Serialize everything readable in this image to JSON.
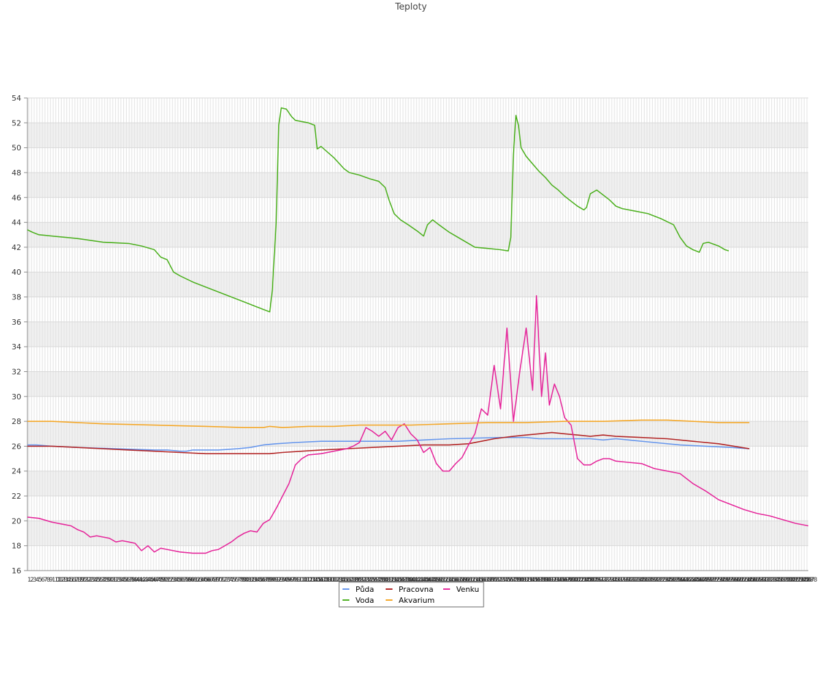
{
  "chart_data": {
    "type": "line",
    "title": "Teploty",
    "xlabel": "",
    "ylabel": "",
    "ylim": [
      16,
      54
    ],
    "yticks": [
      16,
      18,
      20,
      22,
      24,
      26,
      28,
      30,
      32,
      34,
      36,
      38,
      40,
      42,
      44,
      46,
      48,
      50,
      52,
      54
    ],
    "x_count": 288,
    "x_first_label": "1",
    "x_last_label": "288",
    "grid": true,
    "legend_position": "bottom",
    "series": [
      {
        "name": "Půda",
        "color": "#6495ED",
        "points": [
          [
            1,
            26.1
          ],
          [
            8,
            26.1
          ],
          [
            20,
            26.0
          ],
          [
            40,
            25.9
          ],
          [
            70,
            25.8
          ],
          [
            100,
            25.7
          ],
          [
            110,
            25.7
          ],
          [
            120,
            25.6
          ],
          [
            125,
            25.6
          ],
          [
            130,
            25.7
          ],
          [
            150,
            25.7
          ],
          [
            165,
            25.8
          ],
          [
            175,
            25.9
          ],
          [
            185,
            26.1
          ],
          [
            195,
            26.2
          ],
          [
            210,
            26.3
          ],
          [
            230,
            26.4
          ],
          [
            260,
            26.4
          ],
          [
            290,
            26.4
          ],
          [
            310,
            26.5
          ],
          [
            330,
            26.6
          ],
          [
            370,
            26.7
          ],
          [
            390,
            26.7
          ],
          [
            400,
            26.6
          ],
          [
            420,
            26.6
          ],
          [
            440,
            26.6
          ],
          [
            450,
            26.5
          ],
          [
            460,
            26.6
          ],
          [
            470,
            26.5
          ],
          [
            490,
            26.3
          ],
          [
            510,
            26.1
          ],
          [
            530,
            26.0
          ],
          [
            550,
            25.9
          ],
          [
            564,
            25.8
          ]
        ]
      },
      {
        "name": "Pracovna",
        "color": "#B22222",
        "points": [
          [
            1,
            26.0
          ],
          [
            20,
            26.0
          ],
          [
            40,
            25.9
          ],
          [
            60,
            25.8
          ],
          [
            80,
            25.7
          ],
          [
            100,
            25.6
          ],
          [
            120,
            25.5
          ],
          [
            140,
            25.4
          ],
          [
            160,
            25.4
          ],
          [
            175,
            25.4
          ],
          [
            190,
            25.4
          ],
          [
            200,
            25.5
          ],
          [
            215,
            25.6
          ],
          [
            230,
            25.7
          ],
          [
            250,
            25.8
          ],
          [
            270,
            25.9
          ],
          [
            290,
            26.0
          ],
          [
            310,
            26.1
          ],
          [
            330,
            26.1
          ],
          [
            345,
            26.2
          ],
          [
            355,
            26.4
          ],
          [
            365,
            26.6
          ],
          [
            380,
            26.8
          ],
          [
            390,
            26.9
          ],
          [
            400,
            27.0
          ],
          [
            410,
            27.1
          ],
          [
            420,
            27.0
          ],
          [
            430,
            26.9
          ],
          [
            440,
            26.8
          ],
          [
            450,
            26.9
          ],
          [
            460,
            26.8
          ],
          [
            480,
            26.7
          ],
          [
            500,
            26.6
          ],
          [
            520,
            26.4
          ],
          [
            540,
            26.2
          ],
          [
            564,
            25.8
          ]
        ]
      },
      {
        "name": "Venku",
        "color": "#E5259A",
        "points": [
          [
            1,
            20.3
          ],
          [
            10,
            20.2
          ],
          [
            20,
            19.9
          ],
          [
            30,
            19.7
          ],
          [
            35,
            19.6
          ],
          [
            40,
            19.3
          ],
          [
            45,
            19.1
          ],
          [
            50,
            18.7
          ],
          [
            55,
            18.8
          ],
          [
            60,
            18.7
          ],
          [
            65,
            18.6
          ],
          [
            70,
            18.3
          ],
          [
            75,
            18.4
          ],
          [
            80,
            18.3
          ],
          [
            85,
            18.2
          ],
          [
            90,
            17.6
          ],
          [
            95,
            18.0
          ],
          [
            100,
            17.5
          ],
          [
            105,
            17.8
          ],
          [
            110,
            17.7
          ],
          [
            120,
            17.5
          ],
          [
            130,
            17.4
          ],
          [
            140,
            17.4
          ],
          [
            145,
            17.6
          ],
          [
            150,
            17.7
          ],
          [
            155,
            18.0
          ],
          [
            160,
            18.3
          ],
          [
            165,
            18.7
          ],
          [
            170,
            19.0
          ],
          [
            175,
            19.2
          ],
          [
            180,
            19.1
          ],
          [
            185,
            19.8
          ],
          [
            190,
            20.1
          ],
          [
            195,
            21.0
          ],
          [
            200,
            22.0
          ],
          [
            205,
            23.0
          ],
          [
            210,
            24.5
          ],
          [
            215,
            25.0
          ],
          [
            220,
            25.3
          ],
          [
            230,
            25.4
          ],
          [
            240,
            25.6
          ],
          [
            250,
            25.8
          ],
          [
            255,
            26.0
          ],
          [
            260,
            26.3
          ],
          [
            265,
            27.5
          ],
          [
            270,
            27.2
          ],
          [
            275,
            26.8
          ],
          [
            280,
            27.2
          ],
          [
            285,
            26.5
          ],
          [
            290,
            27.5
          ],
          [
            295,
            27.8
          ],
          [
            300,
            27.0
          ],
          [
            305,
            26.5
          ],
          [
            310,
            25.5
          ],
          [
            315,
            25.9
          ],
          [
            320,
            24.6
          ],
          [
            325,
            24.0
          ],
          [
            330,
            24.0
          ],
          [
            335,
            24.6
          ],
          [
            340,
            25.1
          ],
          [
            345,
            26.1
          ],
          [
            350,
            27.0
          ],
          [
            355,
            29.0
          ],
          [
            360,
            28.5
          ],
          [
            365,
            32.5
          ],
          [
            370,
            29.0
          ],
          [
            375,
            35.5
          ],
          [
            380,
            28.0
          ],
          [
            385,
            32.0
          ],
          [
            390,
            35.5
          ],
          [
            395,
            30.5
          ],
          [
            398,
            38.1
          ],
          [
            402,
            30.0
          ],
          [
            405,
            33.5
          ],
          [
            408,
            29.3
          ],
          [
            412,
            31.0
          ],
          [
            416,
            30.0
          ],
          [
            420,
            28.3
          ],
          [
            425,
            27.7
          ],
          [
            430,
            25.0
          ],
          [
            435,
            24.5
          ],
          [
            440,
            24.5
          ],
          [
            445,
            24.8
          ],
          [
            450,
            25.0
          ],
          [
            455,
            25.0
          ],
          [
            460,
            24.8
          ],
          [
            470,
            24.7
          ],
          [
            480,
            24.6
          ],
          [
            490,
            24.2
          ],
          [
            500,
            24.0
          ],
          [
            510,
            23.8
          ],
          [
            520,
            23.0
          ],
          [
            530,
            22.4
          ],
          [
            540,
            21.7
          ],
          [
            550,
            21.3
          ],
          [
            560,
            20.9
          ],
          [
            570,
            20.6
          ],
          [
            580,
            20.4
          ],
          [
            590,
            20.1
          ],
          [
            600,
            19.8
          ],
          [
            610,
            19.6
          ]
        ]
      },
      {
        "name": "Voda",
        "color": "#4CB01E",
        "points": [
          [
            1,
            43.4
          ],
          [
            5,
            43.2
          ],
          [
            10,
            43.0
          ],
          [
            20,
            42.9
          ],
          [
            40,
            42.7
          ],
          [
            60,
            42.4
          ],
          [
            80,
            42.3
          ],
          [
            90,
            42.1
          ],
          [
            100,
            41.8
          ],
          [
            105,
            41.2
          ],
          [
            110,
            41.0
          ],
          [
            115,
            40.0
          ],
          [
            120,
            39.7
          ],
          [
            130,
            39.2
          ],
          [
            140,
            38.8
          ],
          [
            150,
            38.4
          ],
          [
            160,
            38.0
          ],
          [
            170,
            37.6
          ],
          [
            180,
            37.2
          ],
          [
            185,
            37.0
          ],
          [
            190,
            36.8
          ],
          [
            192,
            38.5
          ],
          [
            195,
            44.0
          ],
          [
            197,
            51.8
          ],
          [
            199,
            53.2
          ],
          [
            203,
            53.1
          ],
          [
            207,
            52.5
          ],
          [
            210,
            52.2
          ],
          [
            220,
            52.0
          ],
          [
            225,
            51.8
          ],
          [
            227,
            49.9
          ],
          [
            230,
            50.1
          ],
          [
            240,
            49.2
          ],
          [
            248,
            48.3
          ],
          [
            252,
            48.0
          ],
          [
            260,
            47.8
          ],
          [
            268,
            47.5
          ],
          [
            275,
            47.3
          ],
          [
            280,
            46.8
          ],
          [
            283,
            45.8
          ],
          [
            287,
            44.7
          ],
          [
            292,
            44.2
          ],
          [
            298,
            43.8
          ],
          [
            305,
            43.3
          ],
          [
            310,
            42.9
          ],
          [
            313,
            43.8
          ],
          [
            317,
            44.2
          ],
          [
            322,
            43.8
          ],
          [
            330,
            43.2
          ],
          [
            340,
            42.6
          ],
          [
            350,
            42.0
          ],
          [
            360,
            41.9
          ],
          [
            370,
            41.8
          ],
          [
            376,
            41.7
          ],
          [
            378,
            42.8
          ],
          [
            380,
            49.5
          ],
          [
            382,
            52.6
          ],
          [
            384,
            51.8
          ],
          [
            386,
            50.0
          ],
          [
            390,
            49.3
          ],
          [
            395,
            48.7
          ],
          [
            400,
            48.1
          ],
          [
            405,
            47.6
          ],
          [
            410,
            47.0
          ],
          [
            415,
            46.6
          ],
          [
            420,
            46.1
          ],
          [
            425,
            45.7
          ],
          [
            430,
            45.3
          ],
          [
            435,
            45.0
          ],
          [
            437,
            45.2
          ],
          [
            440,
            46.3
          ],
          [
            445,
            46.6
          ],
          [
            450,
            46.2
          ],
          [
            455,
            45.8
          ],
          [
            460,
            45.3
          ],
          [
            465,
            45.1
          ],
          [
            475,
            44.9
          ],
          [
            485,
            44.7
          ],
          [
            495,
            44.3
          ],
          [
            505,
            43.8
          ],
          [
            510,
            42.8
          ],
          [
            515,
            42.1
          ],
          [
            520,
            41.8
          ],
          [
            525,
            41.6
          ],
          [
            528,
            42.3
          ],
          [
            532,
            42.4
          ],
          [
            540,
            42.1
          ],
          [
            545,
            41.8
          ],
          [
            548,
            41.7
          ]
        ]
      },
      {
        "name": "Akvarium",
        "color": "#F5A623",
        "points": [
          [
            1,
            28.0
          ],
          [
            20,
            28.0
          ],
          [
            40,
            27.9
          ],
          [
            60,
            27.8
          ],
          [
            100,
            27.7
          ],
          [
            140,
            27.6
          ],
          [
            170,
            27.5
          ],
          [
            185,
            27.5
          ],
          [
            190,
            27.6
          ],
          [
            200,
            27.5
          ],
          [
            220,
            27.6
          ],
          [
            240,
            27.6
          ],
          [
            260,
            27.7
          ],
          [
            300,
            27.7
          ],
          [
            330,
            27.8
          ],
          [
            360,
            27.9
          ],
          [
            390,
            27.9
          ],
          [
            420,
            28.0
          ],
          [
            450,
            28.0
          ],
          [
            480,
            28.1
          ],
          [
            500,
            28.1
          ],
          [
            520,
            28.0
          ],
          [
            540,
            27.9
          ],
          [
            564,
            27.9
          ]
        ]
      }
    ]
  }
}
